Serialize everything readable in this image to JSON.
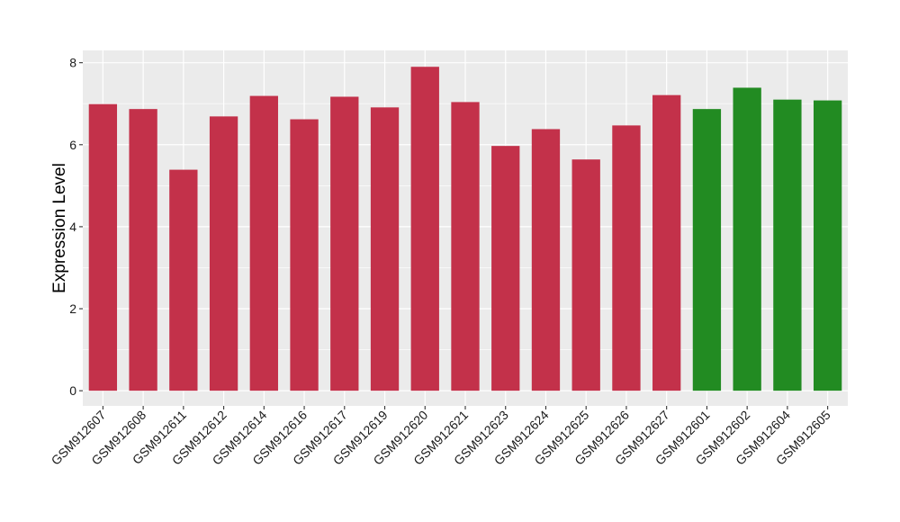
{
  "chart_data": {
    "type": "bar",
    "title": "",
    "xlabel": "",
    "ylabel": "Expression Level",
    "ylim": [
      0,
      8.1
    ],
    "yticks": [
      0,
      2,
      4,
      6,
      8
    ],
    "grid": true,
    "legend": "none",
    "categories": [
      "GSM912607",
      "GSM912608",
      "GSM912611",
      "GSM912612",
      "GSM912614",
      "GSM912616",
      "GSM912617",
      "GSM912619",
      "GSM912620",
      "GSM912621",
      "GSM912623",
      "GSM912624",
      "GSM912625",
      "GSM912626",
      "GSM912627",
      "GSM912601",
      "GSM912602",
      "GSM912604",
      "GSM912605"
    ],
    "values": [
      6.99,
      6.87,
      5.39,
      6.69,
      7.19,
      6.62,
      7.17,
      6.91,
      7.9,
      7.04,
      5.97,
      6.38,
      5.64,
      6.47,
      7.21,
      6.87,
      7.39,
      7.1,
      7.08
    ],
    "bar_colors": [
      "#C3314A",
      "#C3314A",
      "#C3314A",
      "#C3314A",
      "#C3314A",
      "#C3314A",
      "#C3314A",
      "#C3314A",
      "#C3314A",
      "#C3314A",
      "#C3314A",
      "#C3314A",
      "#C3314A",
      "#C3314A",
      "#C3314A",
      "#228B22",
      "#228B22",
      "#228B22",
      "#228B22"
    ],
    "panel_background": "#EBEBEB",
    "grid_color": "#FFFFFF"
  }
}
